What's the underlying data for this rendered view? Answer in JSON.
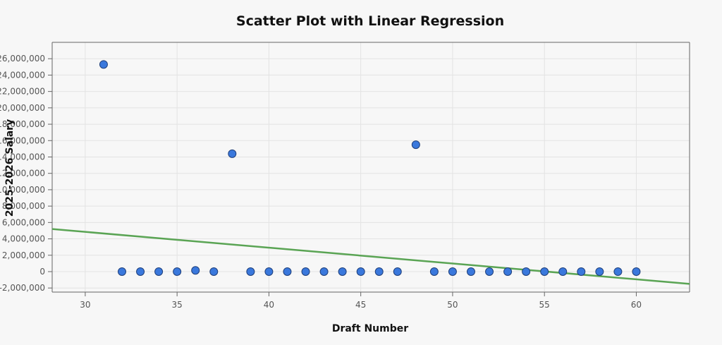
{
  "chart_data": {
    "type": "scatter",
    "title": "Scatter Plot with Linear Regression",
    "xlabel": "Draft Number",
    "ylabel": "2025-2026 Salary",
    "xlim": [
      28.2,
      62.9
    ],
    "ylim": [
      -2500000,
      28000000
    ],
    "x_ticks": [
      30,
      35,
      40,
      45,
      50,
      55,
      60
    ],
    "x_tick_labels": [
      "30",
      "35",
      "40",
      "45",
      "50",
      "55",
      "60"
    ],
    "y_ticks": [
      -2000000,
      0,
      2000000,
      4000000,
      6000000,
      8000000,
      10000000,
      12000000,
      14000000,
      16000000,
      18000000,
      20000000,
      22000000,
      24000000,
      26000000
    ],
    "y_tick_labels": [
      "-2,000,000",
      "0",
      "2,000,000",
      "4,000,000",
      "6,000,000",
      "8,000,000",
      "10,000,000",
      "12,000,000",
      "14,000,000",
      "16,000,000",
      "18,000,000",
      "20,000,000",
      "22,000,000",
      "24,000,000",
      "26,000,000"
    ],
    "grid": true,
    "points": {
      "x": [
        31,
        32,
        33,
        34,
        35,
        36,
        37,
        38,
        39,
        40,
        41,
        42,
        43,
        44,
        45,
        46,
        47,
        48,
        49,
        50,
        51,
        52,
        53,
        54,
        55,
        56,
        57,
        58,
        59,
        60
      ],
      "y": [
        25300000,
        0,
        0,
        0,
        0,
        150000,
        0,
        14400000,
        0,
        0,
        0,
        0,
        0,
        0,
        0,
        0,
        0,
        15500000,
        0,
        0,
        0,
        0,
        0,
        0,
        0,
        0,
        0,
        0,
        0,
        0
      ]
    },
    "regression": {
      "x": [
        28.2,
        62.9
      ],
      "y": [
        5200000,
        -1500000
      ]
    },
    "colors": {
      "point_fill": "#3a78dc",
      "point_stroke": "#1f3f7a",
      "regression_line": "#5aa454",
      "plot_background": "#f7f7f7"
    }
  }
}
